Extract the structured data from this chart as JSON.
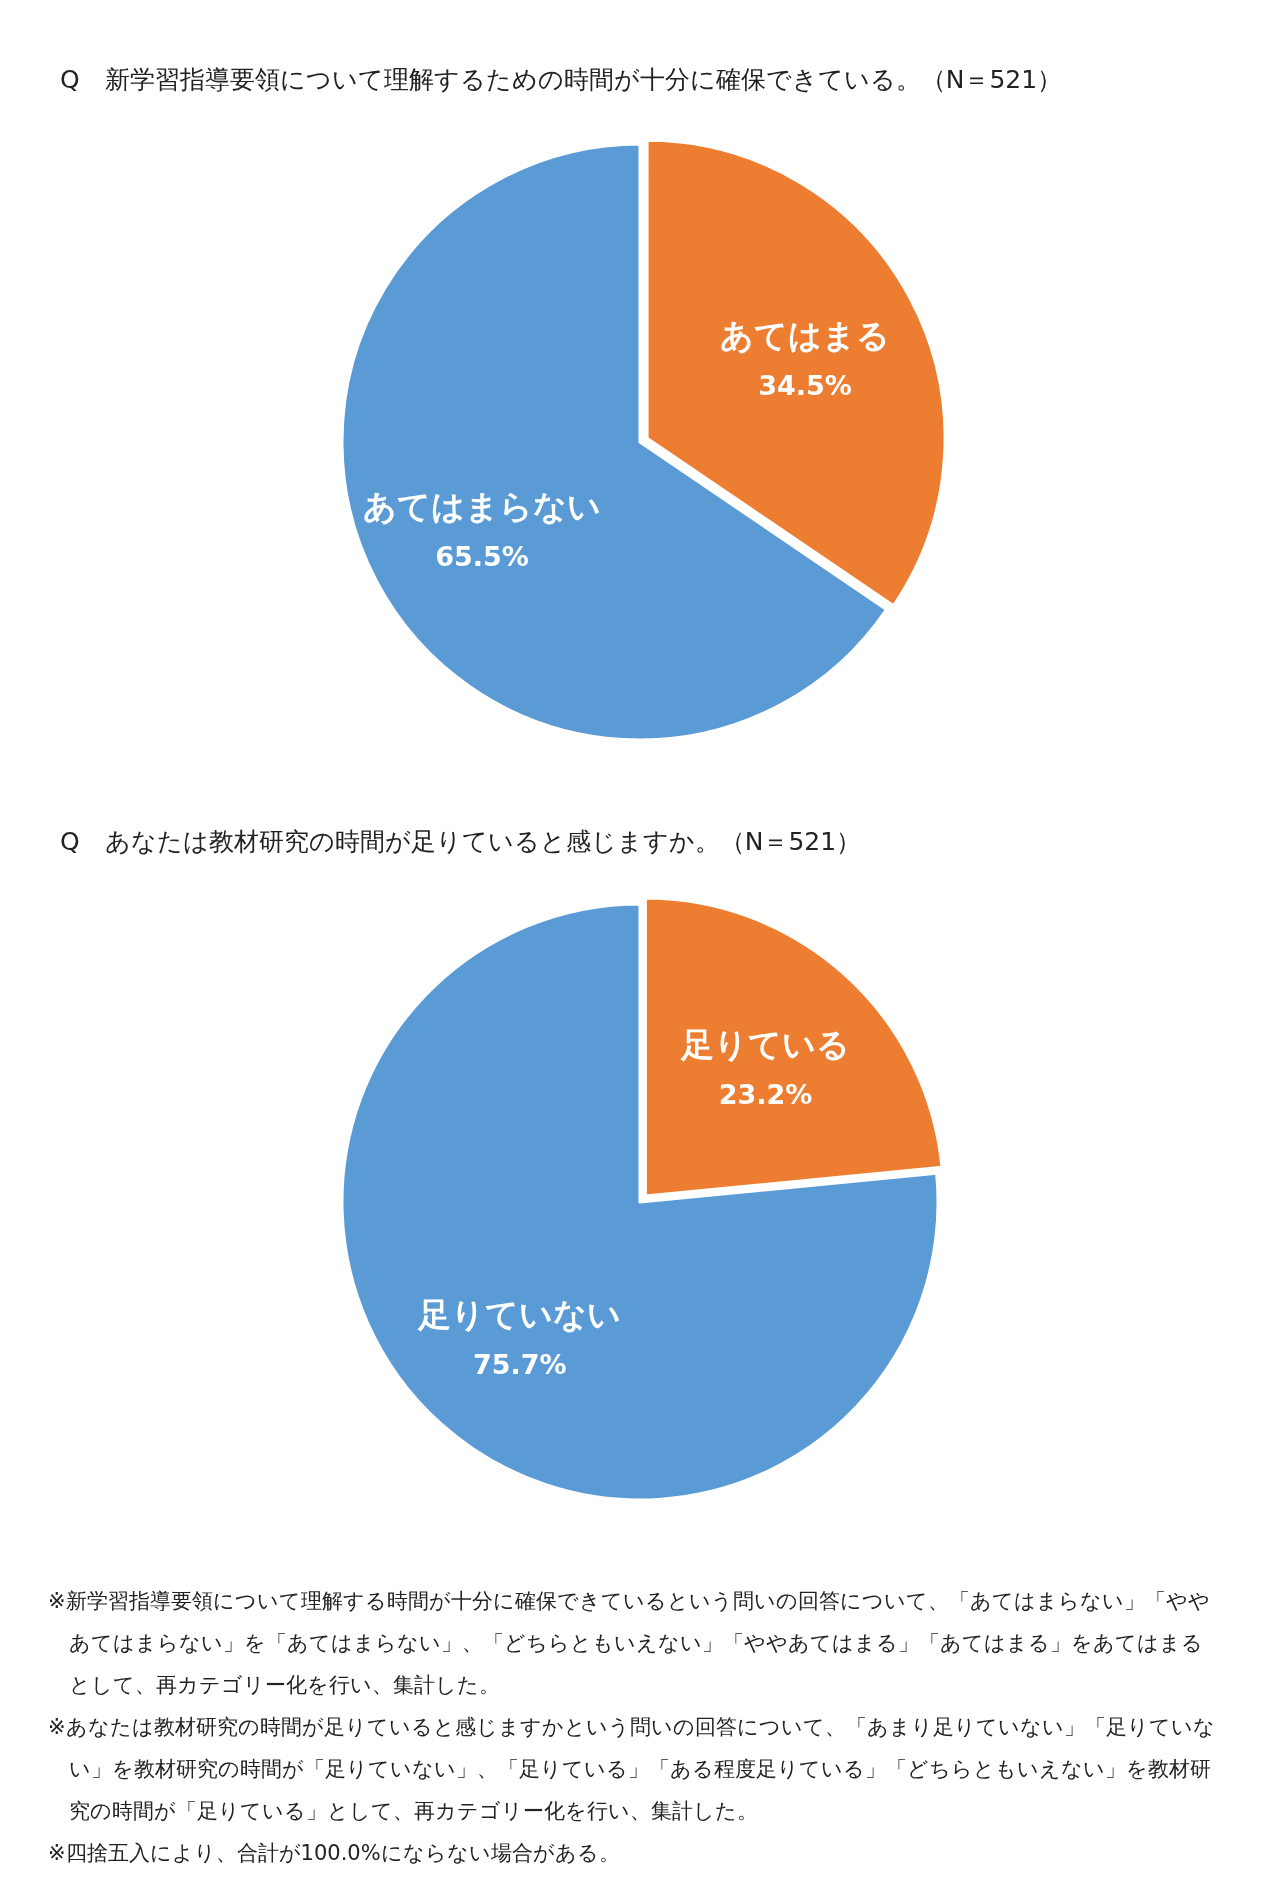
{
  "chart_data": [
    {
      "type": "pie",
      "title": "Q　新学習指導要領について理解するための時間が十分に確保できている。（N＝521）",
      "categories": [
        "あてはまる",
        "あてはまらない"
      ],
      "values": [
        34.5,
        65.5
      ],
      "colors": [
        "#ed7d31",
        "#5b9bd5"
      ],
      "value_labels": [
        "34.5%",
        "65.5%"
      ]
    },
    {
      "type": "pie",
      "title": "Q　あなたは教材研究の時間が足りていると感じますか。（N＝521）",
      "categories": [
        "足りている",
        "足りていない"
      ],
      "values": [
        23.2,
        75.7
      ],
      "colors": [
        "#ed7d31",
        "#5b9bd5"
      ],
      "value_labels": [
        "23.2%",
        "75.7%"
      ],
      "annotations": [
        "※新学習指導要領について理解する時間が十分に確保できているという問いの回答について、「あてはまらない」「ややあてはまらない」を「あてはまらない」、「どちらともいえない」「ややあてはまる」「あてはまる」をあてはまるとして、再カテゴリー化を行い、集計した。",
        "※あなたは教材研究の時間が足りていると感じますかという問いの回答について、「あまり足りていない」「足りていない」を教材研究の時間が「足りていない」、「足りている」「ある程度足りている」「どちらともいえない」を教材研究の時間が「足りている」として、再カテゴリー化を行い、集計した。",
        "※四捨五入により、合計が100.0%にならない場合がある。"
      ]
    }
  ]
}
